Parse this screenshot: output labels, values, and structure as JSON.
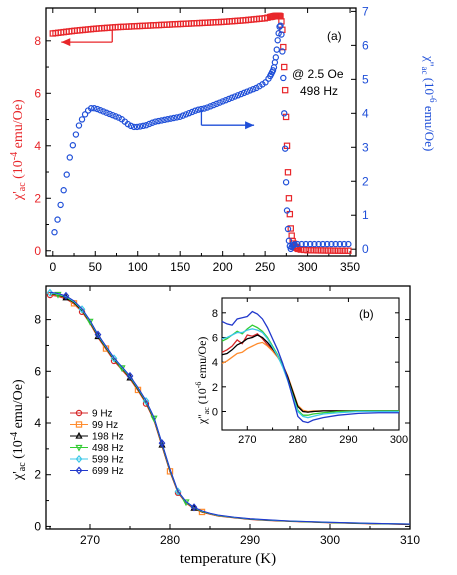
{
  "chart_data": [
    {
      "type": "scatter",
      "panel_label": "(a)",
      "annotation_lines": [
        "@ 2.5 Oe",
        "498 Hz"
      ],
      "xlabel": "",
      "x_ticks": [
        "0",
        "50",
        "100",
        "150",
        "200",
        "250",
        "300",
        "350"
      ],
      "xlim": [
        -8,
        357
      ],
      "left_axis": {
        "label_main": "χ'",
        "label_sub": "ac",
        "label_rest": " (10",
        "label_sup": "-4",
        "label_unit": " emu/Oe)",
        "ticks": [
          "0",
          "2",
          "4",
          "6",
          "8"
        ],
        "ylim": [
          -0.2,
          9.25
        ],
        "color": "#e8262a"
      },
      "right_axis": {
        "label_main": "χ''",
        "label_sub": "ac",
        "label_rest": " (10",
        "label_sup": "-6",
        "label_unit": " emu/Oe)",
        "ticks": [
          "0",
          "1",
          "2",
          "3",
          "4",
          "5",
          "6",
          "7"
        ],
        "ylim": [
          -0.2,
          7.1
        ],
        "color": "#1f4fd8"
      },
      "series": [
        {
          "axis": "left",
          "marker": "square",
          "color": "#e8262a",
          "x": [
            0,
            25,
            50,
            75,
            100,
            125,
            150,
            175,
            200,
            225,
            250,
            262,
            268,
            270,
            272,
            274,
            276,
            278,
            280,
            282,
            285,
            290,
            300,
            320,
            340,
            350
          ],
          "y": [
            8.28,
            8.38,
            8.46,
            8.52,
            8.56,
            8.6,
            8.64,
            8.68,
            8.72,
            8.78,
            8.86,
            8.95,
            8.95,
            8.6,
            7.4,
            5.8,
            3.8,
            2.0,
            0.9,
            0.4,
            0.15,
            0.05,
            0.02,
            0.01,
            0.0,
            0.0
          ]
        },
        {
          "axis": "right",
          "marker": "circle",
          "color": "#1f4fd8",
          "x": [
            2,
            5,
            10,
            15,
            20,
            25,
            30,
            35,
            40,
            45,
            50,
            55,
            60,
            65,
            70,
            75,
            80,
            85,
            90,
            95,
            100,
            110,
            120,
            130,
            140,
            150,
            160,
            170,
            180,
            190,
            200,
            210,
            220,
            230,
            240,
            250,
            255,
            260,
            263,
            265,
            267,
            268,
            269,
            270,
            271,
            272,
            273,
            274,
            275,
            276,
            277,
            278,
            279,
            280,
            282,
            285,
            290,
            300,
            320,
            340,
            350
          ],
          "y": [
            0.5,
            0.8,
            1.4,
            2.0,
            2.7,
            3.2,
            3.6,
            3.85,
            4.05,
            4.15,
            4.15,
            4.1,
            4.05,
            4.0,
            3.95,
            3.9,
            3.85,
            3.75,
            3.65,
            3.6,
            3.6,
            3.65,
            3.75,
            3.8,
            3.85,
            3.9,
            4.0,
            4.1,
            4.15,
            4.25,
            4.35,
            4.45,
            4.55,
            4.65,
            4.75,
            4.9,
            5.05,
            5.3,
            5.7,
            6.2,
            6.55,
            6.6,
            6.4,
            6.0,
            5.4,
            4.5,
            3.5,
            2.6,
            1.7,
            1.0,
            0.55,
            0.25,
            0.1,
            0.0,
            0.1,
            0.15,
            0.15,
            0.15,
            0.15,
            0.15,
            0.15
          ]
        }
      ],
      "arrows": [
        {
          "axis": "left",
          "from": [
            70,
            7.95
          ],
          "to": [
            10,
            7.95
          ],
          "color": "#e8262a"
        },
        {
          "axis": "right",
          "from": [
            175,
            3.65
          ],
          "to": [
            237,
            3.65
          ],
          "color": "#1f4fd8"
        }
      ]
    },
    {
      "type": "line",
      "xlabel": "temperature (K)",
      "x_ticks": [
        "270",
        "280",
        "290",
        "300",
        "310"
      ],
      "xlim": [
        264.5,
        310
      ],
      "ylabel_main": "χ'",
      "ylabel_sub": "ac",
      "ylabel_rest": " (10",
      "ylabel_sup": "-4",
      "ylabel_unit": " emu/Oe)",
      "y_ticks": [
        "0",
        "2",
        "4",
        "6",
        "8"
      ],
      "ylim": [
        -0.1,
        9.3
      ],
      "x": [
        265,
        266,
        267,
        268,
        269,
        270,
        271,
        272,
        273,
        274,
        275,
        276,
        277,
        278,
        279,
        280,
        281,
        282,
        283,
        284,
        285,
        286,
        288,
        290,
        292,
        295,
        300,
        305,
        310
      ],
      "series": [
        {
          "name": "9 Hz",
          "marker": "circle",
          "color": "#d62728",
          "y": [
            8.95,
            8.9,
            8.8,
            8.6,
            8.3,
            7.85,
            7.3,
            6.85,
            6.4,
            6.05,
            5.7,
            5.25,
            4.75,
            4.1,
            3.1,
            2.1,
            1.3,
            0.9,
            0.68,
            0.55,
            0.47,
            0.4,
            0.33,
            0.27,
            0.23,
            0.19,
            0.14,
            0.1,
            0.08
          ],
          "mark_every": 4,
          "mark_offset": 0
        },
        {
          "name": "99 Hz",
          "marker": "square",
          "color": "#ff8c2e",
          "y": [
            8.98,
            8.93,
            8.83,
            8.63,
            8.33,
            7.88,
            7.33,
            6.88,
            6.43,
            6.08,
            5.73,
            5.28,
            4.78,
            4.13,
            3.13,
            2.13,
            1.32,
            0.92,
            0.7,
            0.56,
            0.48,
            0.41,
            0.34,
            0.28,
            0.24,
            0.2,
            0.15,
            0.11,
            0.08
          ],
          "mark_every": 4,
          "mark_offset": 1
        },
        {
          "name": "198 Hz",
          "marker": "triangle",
          "color": "#000000",
          "y": [
            9.0,
            8.95,
            8.85,
            8.65,
            8.35,
            7.9,
            7.35,
            6.9,
            6.45,
            6.1,
            5.75,
            5.3,
            4.8,
            4.15,
            3.15,
            2.15,
            1.33,
            0.93,
            0.71,
            0.57,
            0.49,
            0.42,
            0.34,
            0.28,
            0.24,
            0.2,
            0.15,
            0.11,
            0.08
          ],
          "mark_every": 4,
          "mark_offset": 2
        },
        {
          "name": "498 Hz",
          "marker": "triangle-down",
          "color": "#33cc33",
          "y": [
            9.02,
            8.97,
            8.87,
            8.68,
            8.38,
            7.93,
            7.38,
            6.93,
            6.48,
            6.13,
            5.78,
            5.33,
            4.83,
            4.18,
            3.18,
            2.18,
            1.34,
            0.94,
            0.72,
            0.58,
            0.5,
            0.42,
            0.35,
            0.29,
            0.25,
            0.2,
            0.15,
            0.11,
            0.09
          ],
          "mark_every": 4,
          "mark_offset": 3
        },
        {
          "name": "599 Hz",
          "marker": "diamond",
          "color": "#3cc8e8",
          "y": [
            9.04,
            8.99,
            8.9,
            8.7,
            8.4,
            7.95,
            7.4,
            6.95,
            6.5,
            6.15,
            5.8,
            5.35,
            4.85,
            4.2,
            3.2,
            2.2,
            1.35,
            0.95,
            0.73,
            0.59,
            0.5,
            0.43,
            0.35,
            0.29,
            0.25,
            0.21,
            0.16,
            0.12,
            0.09
          ],
          "mark_every": 4,
          "mark_offset": 0
        },
        {
          "name": "699 Hz",
          "marker": "diamond",
          "color": "#2138cc",
          "y": [
            9.06,
            9.01,
            8.92,
            8.72,
            8.42,
            7.97,
            7.42,
            6.97,
            6.52,
            6.17,
            5.82,
            5.37,
            4.87,
            4.22,
            3.22,
            2.22,
            1.36,
            0.96,
            0.74,
            0.6,
            0.51,
            0.44,
            0.36,
            0.3,
            0.26,
            0.21,
            0.16,
            0.12,
            0.09
          ],
          "mark_every": 4,
          "mark_offset": 2
        }
      ],
      "legend_placement": "left"
    },
    {
      "type": "line",
      "panel_label": "(b)",
      "placement": "inset",
      "xlabel": "",
      "x_ticks": [
        "270",
        "280",
        "290",
        "300"
      ],
      "xlim": [
        265,
        300
      ],
      "ylabel_main": "χ''",
      "ylabel_sub": "ac",
      "ylabel_rest": " (10",
      "ylabel_sup": "-6",
      "ylabel_unit": " emu/Oe)",
      "y_ticks": [
        "0",
        "2",
        "4",
        "6",
        "8"
      ],
      "ylim": [
        -1.5,
        9.2
      ],
      "x": [
        265,
        266,
        267,
        268,
        269,
        270,
        271,
        272,
        273,
        274,
        275,
        276,
        277,
        278,
        279,
        280,
        281,
        282,
        283,
        285,
        288,
        292,
        296,
        300
      ],
      "series": [
        {
          "name": "9 Hz",
          "color": "#d62728",
          "y": [
            4.8,
            5.0,
            5.3,
            5.8,
            5.5,
            6.2,
            6.1,
            6.3,
            5.9,
            5.4,
            5.0,
            4.5,
            3.8,
            2.8,
            1.5,
            0.4,
            0.0,
            -0.05,
            0.0,
            0.05,
            0.05,
            0.05,
            0.05,
            0.05
          ]
        },
        {
          "name": "99 Hz",
          "color": "#ff8c2e",
          "y": [
            3.9,
            4.1,
            4.4,
            4.7,
            4.8,
            5.1,
            5.3,
            5.5,
            5.6,
            5.3,
            4.9,
            4.4,
            3.8,
            2.9,
            1.7,
            0.5,
            0.1,
            0.0,
            0.05,
            0.05,
            0.05,
            0.05,
            0.05,
            0.05
          ]
        },
        {
          "name": "198 Hz",
          "color": "#000000",
          "y": [
            4.6,
            4.7,
            5.0,
            5.4,
            5.6,
            5.9,
            6.0,
            6.2,
            6.0,
            5.6,
            5.1,
            4.5,
            3.8,
            2.8,
            1.6,
            0.4,
            0.0,
            -0.05,
            0.0,
            0.05,
            0.05,
            0.05,
            0.05,
            0.05
          ]
        },
        {
          "name": "498 Hz",
          "color": "#33cc33",
          "y": [
            5.7,
            5.9,
            6.2,
            6.5,
            6.3,
            6.7,
            7.0,
            6.8,
            6.5,
            6.0,
            5.3,
            4.6,
            3.7,
            2.6,
            1.3,
            0.1,
            -0.3,
            -0.3,
            -0.2,
            -0.1,
            0.0,
            0.05,
            0.05,
            0.05
          ]
        },
        {
          "name": "599 Hz",
          "color": "#3cc8e8",
          "y": [
            5.9,
            6.0,
            6.2,
            6.4,
            6.4,
            6.6,
            6.7,
            6.6,
            6.4,
            5.9,
            5.2,
            4.5,
            3.6,
            2.5,
            1.2,
            0.0,
            -0.4,
            -0.5,
            -0.4,
            -0.2,
            -0.1,
            0.0,
            0.0,
            0.0
          ]
        },
        {
          "name": "699 Hz",
          "color": "#2138cc",
          "y": [
            7.3,
            7.1,
            7.0,
            7.5,
            7.6,
            7.7,
            8.1,
            7.9,
            7.5,
            6.8,
            5.9,
            5.0,
            3.9,
            2.6,
            1.1,
            -0.4,
            -0.8,
            -0.9,
            -0.7,
            -0.5,
            -0.3,
            -0.15,
            -0.1,
            -0.1
          ]
        }
      ]
    }
  ]
}
